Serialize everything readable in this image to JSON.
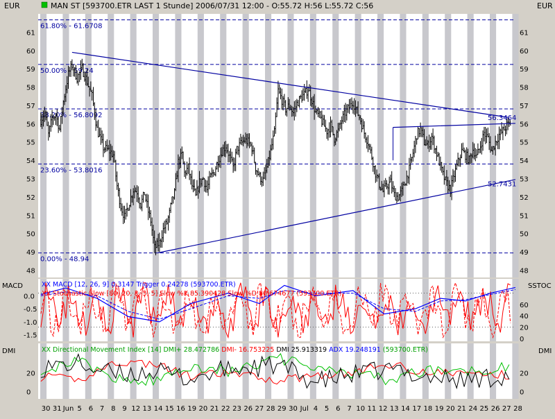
{
  "header": {
    "title": "MAN ST [593700.ETR LAST 1 Stunde] 2006/07/31 12:00 - O:55.72 H:56 L:55.72 C:56",
    "currency_left": "EUR",
    "currency_right": "EUR"
  },
  "colors": {
    "background": "#ffffff",
    "stripe": "#c8c8cd",
    "frame": "#d4d0c8",
    "price": "#000000",
    "trendline": "#0000a0",
    "fib": "#0000a0",
    "macd": "#0000ff",
    "stoch": "#ff0000",
    "dmi_plus": "#00c000",
    "dmi_minus": "#ff0000",
    "adx": "#000000"
  },
  "chart_data": [
    {
      "type": "candlestick",
      "panel": "price",
      "ylim": [
        47.6,
        62.0
      ],
      "yticks": [
        48,
        49,
        50,
        51,
        52,
        53,
        54,
        55,
        56,
        57,
        58,
        59,
        60,
        61
      ],
      "bars_per_day": 9,
      "days": [
        "30",
        "31",
        "Jun",
        "5",
        "6",
        "7",
        "8",
        "9",
        "12",
        "13",
        "14",
        "15",
        "16",
        "19",
        "20",
        "21",
        "22",
        "23",
        "26",
        "27",
        "28",
        "29",
        "30",
        "Jul",
        "4",
        "5",
        "6",
        "7",
        "10",
        "11",
        "12",
        "13",
        "14",
        "17",
        "18",
        "19",
        "20",
        "21",
        "24",
        "25",
        "26",
        "27",
        "28"
      ],
      "price_path": [
        [
          0,
          56.2
        ],
        [
          3,
          56.6
        ],
        [
          6,
          55.4
        ],
        [
          9,
          56.3
        ],
        [
          12,
          56.5
        ],
        [
          15,
          55.7
        ],
        [
          18,
          57.2
        ],
        [
          22,
          58.7
        ],
        [
          25,
          59.2
        ],
        [
          29,
          58.5
        ],
        [
          33,
          59.0
        ],
        [
          37,
          58.3
        ],
        [
          41,
          57.5
        ],
        [
          45,
          55.7
        ],
        [
          50,
          54.7
        ],
        [
          55,
          54.5
        ],
        [
          58,
          54.3
        ],
        [
          61,
          52.6
        ],
        [
          64,
          51.5
        ],
        [
          67,
          50.9
        ],
        [
          70,
          51.5
        ],
        [
          74,
          52.4
        ],
        [
          77,
          52.3
        ],
        [
          80,
          51.6
        ],
        [
          83,
          52.2
        ],
        [
          86,
          51.2
        ],
        [
          88,
          50.7
        ],
        [
          91,
          49.2
        ],
        [
          95,
          49.5
        ],
        [
          98,
          50.2
        ],
        [
          101,
          50.6
        ],
        [
          103,
          51.1
        ],
        [
          105,
          51.8
        ],
        [
          107,
          52.2
        ],
        [
          110,
          53.9
        ],
        [
          113,
          54.3
        ],
        [
          115,
          53.3
        ],
        [
          118,
          53.6
        ],
        [
          121,
          52.6
        ],
        [
          124,
          52.0
        ],
        [
          127,
          52.8
        ],
        [
          130,
          53.0
        ],
        [
          133,
          52.4
        ],
        [
          136,
          53.1
        ],
        [
          139,
          53.4
        ],
        [
          142,
          54.0
        ],
        [
          145,
          54.5
        ],
        [
          148,
          54.8
        ],
        [
          151,
          54.2
        ],
        [
          154,
          53.6
        ],
        [
          157,
          54.6
        ],
        [
          160,
          54.9
        ],
        [
          163,
          55.1
        ],
        [
          166,
          55.0
        ],
        [
          169,
          54.7
        ],
        [
          172,
          53.6
        ],
        [
          175,
          53.1
        ],
        [
          178,
          52.9
        ],
        [
          181,
          53.6
        ],
        [
          184,
          54.5
        ],
        [
          187,
          55.5
        ],
        [
          190,
          57.8
        ],
        [
          193,
          57.3
        ],
        [
          196,
          56.8
        ],
        [
          199,
          57.0
        ],
        [
          202,
          56.6
        ],
        [
          205,
          57.1
        ],
        [
          208,
          57.4
        ],
        [
          211,
          57.6
        ],
        [
          214,
          57.9
        ],
        [
          217,
          57.3
        ],
        [
          220,
          56.6
        ],
        [
          223,
          56.4
        ],
        [
          226,
          56.0
        ],
        [
          229,
          55.6
        ],
        [
          232,
          55.9
        ],
        [
          235,
          55.2
        ],
        [
          238,
          55.6
        ],
        [
          241,
          56.2
        ],
        [
          244,
          56.6
        ],
        [
          247,
          56.9
        ],
        [
          250,
          57.2
        ],
        [
          253,
          56.7
        ],
        [
          256,
          56.2
        ],
        [
          259,
          55.5
        ],
        [
          262,
          55.0
        ],
        [
          265,
          54.2
        ],
        [
          268,
          53.3
        ],
        [
          271,
          52.7
        ],
        [
          274,
          52.3
        ],
        [
          277,
          52.6
        ],
        [
          280,
          52.8
        ],
        [
          283,
          52.1
        ],
        [
          286,
          52.0
        ],
        [
          289,
          52.3
        ],
        [
          292,
          52.9
        ],
        [
          295,
          53.5
        ],
        [
          298,
          54.4
        ],
        [
          301,
          55.4
        ],
        [
          304,
          55.7
        ],
        [
          307,
          55.0
        ],
        [
          310,
          54.8
        ],
        [
          313,
          55.3
        ],
        [
          316,
          54.6
        ],
        [
          319,
          53.9
        ],
        [
          322,
          53.2
        ],
        [
          325,
          52.7
        ],
        [
          328,
          52.4
        ],
        [
          331,
          53.2
        ],
        [
          334,
          53.9
        ],
        [
          337,
          54.5
        ],
        [
          340,
          54.3
        ],
        [
          343,
          54.0
        ],
        [
          346,
          54.6
        ],
        [
          349,
          54.2
        ],
        [
          352,
          54.8
        ],
        [
          355,
          55.5
        ],
        [
          358,
          55.2
        ],
        [
          361,
          54.5
        ],
        [
          364,
          55.0
        ],
        [
          367,
          55.4
        ],
        [
          370,
          55.6
        ],
        [
          373,
          55.9
        ],
        [
          376,
          56.0
        ]
      ],
      "trendlines": [
        {
          "x1": 25,
          "y1": 59.9,
          "x2": 374,
          "y2": 56.35
        },
        {
          "x1": 94,
          "y1": 48.95,
          "x2": 380,
          "y2": 52.95
        },
        {
          "x1": 282,
          "y1": 55.8,
          "x2": 380,
          "y2": 56.02
        }
      ],
      "fib_levels": [
        {
          "label": "61.80% - 61.6708",
          "value": 61.6708
        },
        {
          "label": "50.00% - 59.24",
          "value": 59.24
        },
        {
          "label": "38.20% - 56.8092",
          "value": 56.8092
        },
        {
          "label": "23.60% - 53.8016",
          "value": 53.8016
        },
        {
          "label": "0.00% - 48.94",
          "value": 48.94
        }
      ],
      "annotations": [
        {
          "text": "56.3464",
          "value": 56.3464
        },
        {
          "text": "52.7431",
          "value": 52.7431
        }
      ]
    },
    {
      "type": "line",
      "panel": "oscillators",
      "ylim_macd": [
        -1.75,
        0.65
      ],
      "ylim_stoch": [
        -5,
        105
      ],
      "left_ticks": [
        "0.0",
        "-0.5",
        "-1.0",
        "-1.5"
      ],
      "left_tick_values": [
        0.0,
        -0.5,
        -1.0,
        -1.5
      ],
      "right_ticks": [
        "60",
        "40",
        "20",
        "0"
      ],
      "right_tick_values": [
        60,
        40,
        20,
        0
      ],
      "legend_macd": "XX MACD [12, 26, 9] 0.3147 Trigger 0.24278 (593700.ETR)",
      "legend_stoch": "XX Stochastic Slow [80, 20, 3, 3, 5] Slow %K 85.390428 Slow %D 80.674677 (593700.ETR)",
      "reference_levels": [
        80,
        20
      ],
      "macd_path": [
        [
          0,
          0.05
        ],
        [
          20,
          0.3
        ],
        [
          45,
          -0.1
        ],
        [
          70,
          -0.8
        ],
        [
          95,
          -1.0
        ],
        [
          120,
          -0.3
        ],
        [
          150,
          0.1
        ],
        [
          175,
          -0.3
        ],
        [
          195,
          0.4
        ],
        [
          220,
          0.0
        ],
        [
          250,
          0.2
        ],
        [
          275,
          -0.7
        ],
        [
          300,
          -0.5
        ],
        [
          320,
          -0.1
        ],
        [
          340,
          -0.2
        ],
        [
          360,
          0.1
        ],
        [
          380,
          0.32
        ]
      ],
      "trigger_path": [
        [
          0,
          0.0
        ],
        [
          20,
          0.15
        ],
        [
          45,
          0.0
        ],
        [
          70,
          -0.6
        ],
        [
          95,
          -0.9
        ],
        [
          120,
          -0.5
        ],
        [
          150,
          0.0
        ],
        [
          175,
          -0.1
        ],
        [
          195,
          0.2
        ],
        [
          220,
          0.1
        ],
        [
          250,
          0.1
        ],
        [
          275,
          -0.5
        ],
        [
          300,
          -0.6
        ],
        [
          320,
          -0.2
        ],
        [
          340,
          -0.15
        ],
        [
          360,
          0.05
        ],
        [
          380,
          0.24
        ]
      ]
    },
    {
      "type": "line",
      "panel": "dmi",
      "ylim": [
        -8,
        52
      ],
      "ticks": [
        "20",
        "0"
      ],
      "tick_values": [
        20,
        0
      ],
      "legend_prefix": "XX Directional Movement Index [14]",
      "legend_dmi_plus": "DMI+ 28.472786",
      "legend_dmi_minus": "DMI- 16.753225",
      "legend_dmi": "DMI 25.913319",
      "legend_adx": "ADX 19.248191",
      "legend_symbol": "(593700.ETR)",
      "dmi_plus_path": [
        [
          0,
          24
        ],
        [
          30,
          32
        ],
        [
          60,
          14
        ],
        [
          90,
          12
        ],
        [
          120,
          28
        ],
        [
          150,
          22
        ],
        [
          190,
          36
        ],
        [
          220,
          24
        ],
        [
          250,
          20
        ],
        [
          280,
          12
        ],
        [
          310,
          24
        ],
        [
          340,
          22
        ],
        [
          380,
          28
        ]
      ],
      "dmi_minus_path": [
        [
          0,
          16
        ],
        [
          30,
          12
        ],
        [
          60,
          32
        ],
        [
          90,
          30
        ],
        [
          120,
          16
        ],
        [
          150,
          20
        ],
        [
          190,
          12
        ],
        [
          220,
          18
        ],
        [
          250,
          20
        ],
        [
          280,
          30
        ],
        [
          310,
          20
        ],
        [
          340,
          20
        ],
        [
          380,
          17
        ]
      ],
      "adx_path": [
        [
          0,
          26
        ],
        [
          30,
          30
        ],
        [
          60,
          18
        ],
        [
          90,
          22
        ],
        [
          120,
          14
        ],
        [
          150,
          24
        ],
        [
          190,
          28
        ],
        [
          220,
          10
        ],
        [
          250,
          18
        ],
        [
          280,
          24
        ],
        [
          310,
          16
        ],
        [
          340,
          12
        ],
        [
          380,
          19
        ]
      ]
    }
  ],
  "panels": {
    "macd_label": "MACD",
    "sstoc_label": "SSTOC",
    "dmi_left_label": "DMI",
    "dmi_right_label": "DMI"
  }
}
